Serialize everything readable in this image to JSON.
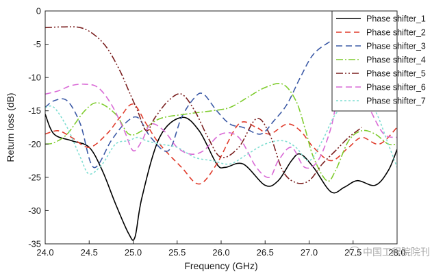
{
  "chart_data": {
    "type": "line",
    "xlabel": "Frequency (GHz)",
    "ylabel": "Return loss (dB)",
    "xlim": [
      24.0,
      28.0
    ],
    "ylim": [
      -35,
      0
    ],
    "xticks": [
      "24.0",
      "24.5",
      "25.0",
      "25.5",
      "26.0",
      "26.5",
      "27.0",
      "27.5",
      "28.0"
    ],
    "yticks": [
      "0",
      "-5",
      "-10",
      "-15",
      "-20",
      "-25",
      "-30",
      "-35"
    ],
    "grid": false,
    "legend_position": "top-right",
    "series": [
      {
        "name": "Phase shifter_1",
        "color": "#000000",
        "dash": "solid",
        "x": [
          24.0,
          24.1,
          24.3,
          24.5,
          24.65,
          24.8,
          24.95,
          25.02,
          25.1,
          25.3,
          25.55,
          25.75,
          25.95,
          26.05,
          26.25,
          26.5,
          26.65,
          26.8,
          26.9,
          27.05,
          27.25,
          27.4,
          27.55,
          27.75,
          27.9,
          28.0
        ],
        "y": [
          -15.5,
          -18.5,
          -19.5,
          -20.5,
          -24,
          -29,
          -33.5,
          -34,
          -28,
          -19,
          -16,
          -18,
          -23,
          -23.5,
          -23,
          -26.2,
          -25.5,
          -22.5,
          -21.5,
          -23.5,
          -27.2,
          -26.5,
          -25.5,
          -26.2,
          -24,
          -20.8
        ]
      },
      {
        "name": "Phase shifter_2",
        "color": "#e03b2b",
        "dash": "8,5",
        "x": [
          24.0,
          24.15,
          24.3,
          24.5,
          24.7,
          24.85,
          25.0,
          25.15,
          25.3,
          25.55,
          25.75,
          25.95,
          26.2,
          26.4,
          26.55,
          26.75,
          26.9,
          27.05,
          27.25,
          27.45,
          27.6,
          27.8,
          28.0
        ],
        "y": [
          -18.5,
          -18,
          -19,
          -20.5,
          -18.5,
          -16,
          -14,
          -17,
          -20,
          -23.5,
          -26,
          -23,
          -17,
          -17.5,
          -18.5,
          -17,
          -18,
          -20.5,
          -22.5,
          -20.5,
          -19,
          -20,
          -17.5
        ]
      },
      {
        "name": "Phase shifter_3",
        "color": "#3c5aa6",
        "dash": "9,5",
        "x": [
          24.0,
          24.1,
          24.25,
          24.4,
          24.55,
          24.75,
          24.9,
          25.05,
          25.2,
          25.4,
          25.55,
          25.7,
          25.8,
          25.95,
          26.1,
          26.25,
          26.45,
          26.6,
          26.75,
          26.9,
          27.05,
          27.25,
          27.4,
          27.55,
          27.7,
          27.85,
          28.0
        ],
        "y": [
          -14.5,
          -13.5,
          -13.5,
          -17,
          -23.5,
          -19.5,
          -17,
          -16,
          -19,
          -21,
          -16,
          -13,
          -12.5,
          -15,
          -17,
          -17.5,
          -18.5,
          -16.5,
          -14,
          -10,
          -6.5,
          -4.5,
          -3.5,
          -3.2,
          -3.5,
          -4.2,
          -5
        ]
      },
      {
        "name": "Phase shifter_4",
        "color": "#7fcc2e",
        "dash": "10,3,2,3",
        "x": [
          24.0,
          24.1,
          24.25,
          24.45,
          24.6,
          24.8,
          24.95,
          25.1,
          25.3,
          25.6,
          25.9,
          26.1,
          26.3,
          26.5,
          26.7,
          26.85,
          26.95,
          27.05,
          27.2,
          27.3,
          27.45,
          27.6,
          27.75,
          27.9,
          28.0
        ],
        "y": [
          -20,
          -19.8,
          -18.5,
          -15,
          -13.8,
          -15.5,
          -18.5,
          -18,
          -16.2,
          -15.5,
          -15,
          -14.5,
          -13,
          -11.5,
          -11,
          -13.5,
          -17.5,
          -22,
          -25.5,
          -24,
          -19.5,
          -18,
          -18.5,
          -20,
          -20
        ]
      },
      {
        "name": "Phase shifter_5",
        "color": "#7a1f1f",
        "dash": "10,3,2,3,2,3",
        "x": [
          24.0,
          24.2,
          24.4,
          24.55,
          24.7,
          24.85,
          24.95,
          25.05,
          25.15,
          25.25,
          25.4,
          25.55,
          25.7,
          25.85,
          26.0,
          26.2,
          26.4,
          26.55,
          26.7,
          26.85,
          27.0,
          27.15,
          27.3,
          27.45,
          27.6
        ],
        "y": [
          -2.5,
          -2.4,
          -2.5,
          -3.5,
          -5.5,
          -9,
          -12,
          -15,
          -18,
          -16,
          -13.5,
          -12.5,
          -15,
          -19,
          -22,
          -20.5,
          -16.2,
          -18.5,
          -24,
          -25.8,
          -25.5,
          -23,
          -21,
          -19,
          -17.5
        ]
      },
      {
        "name": "Phase shifter_6",
        "color": "#d96ad6",
        "dash": "9,5",
        "x": [
          24.0,
          24.15,
          24.3,
          24.45,
          24.6,
          24.75,
          24.9,
          25.0,
          25.1,
          25.2,
          25.35,
          25.5,
          25.65,
          25.8,
          26.0,
          26.2,
          26.4,
          26.55,
          26.65,
          26.8,
          26.95,
          27.1,
          27.25,
          27.35,
          27.45,
          27.55,
          27.7,
          27.85,
          28.0
        ],
        "y": [
          -12.5,
          -12,
          -11.2,
          -11,
          -11.5,
          -14,
          -18,
          -21,
          -19.5,
          -17,
          -18,
          -20.5,
          -21.5,
          -21,
          -18.5,
          -19,
          -23.5,
          -25,
          -22.5,
          -20.5,
          -23.5,
          -22.5,
          -17.5,
          -11,
          -9,
          -10.5,
          -15,
          -18.5,
          -19
        ]
      },
      {
        "name": "Phase shifter_7",
        "color": "#7fded2",
        "dash": "3,3",
        "x": [
          24.0,
          24.1,
          24.25,
          24.4,
          24.5,
          24.65,
          24.8,
          24.95,
          25.05,
          25.15,
          25.3,
          25.5,
          25.7,
          25.9,
          26.1,
          26.3,
          26.5,
          26.7,
          26.85,
          27.0,
          27.15,
          27.3,
          27.45,
          27.6,
          27.75,
          27.9,
          28.0
        ],
        "y": [
          -14.5,
          -14.5,
          -17.5,
          -22,
          -24.5,
          -23,
          -20,
          -19.5,
          -19,
          -19.5,
          -20,
          -20.5,
          -22,
          -22.5,
          -23,
          -21.5,
          -20,
          -19.5,
          -20.5,
          -22.5,
          -19.5,
          -15.5,
          -14,
          -13.5,
          -15,
          -20,
          -23.5
        ]
      }
    ]
  },
  "watermark": {
    "icon": "wechat-icon",
    "text": "中国工程院院刊"
  }
}
